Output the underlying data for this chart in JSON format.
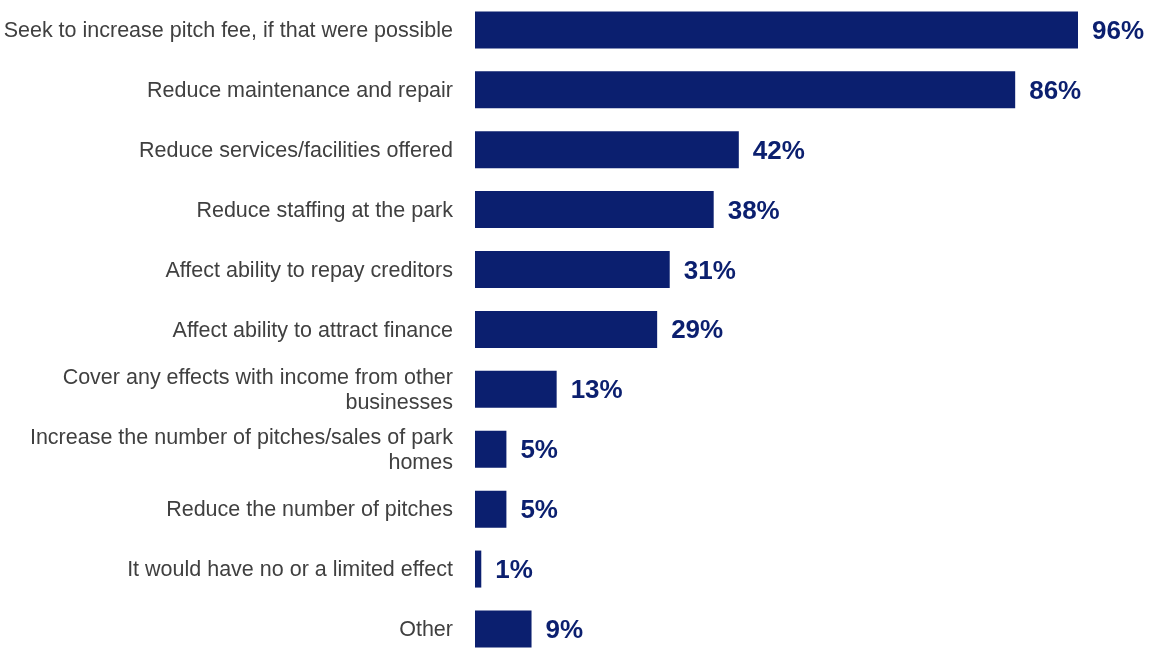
{
  "chart_data": {
    "type": "bar",
    "orientation": "horizontal",
    "categories": [
      "Seek to increase pitch fee, if that were possible",
      "Reduce maintenance and repair",
      "Reduce services/facilities offered",
      "Reduce staffing at the park",
      "Affect ability to repay creditors",
      "Affect ability to attract finance",
      "Cover any effects with income from other businesses",
      "Increase the number of pitches/sales of park homes",
      "Reduce the number of pitches",
      "It would have no or a limited effect",
      "Other"
    ],
    "values": [
      96,
      86,
      42,
      38,
      31,
      29,
      13,
      5,
      5,
      1,
      9
    ],
    "value_labels": [
      "96%",
      "86%",
      "42%",
      "38%",
      "31%",
      "29%",
      "13%",
      "5%",
      "5%",
      "1%",
      "9%"
    ],
    "color": "#0b1f6f",
    "grid": false,
    "legend": false
  }
}
